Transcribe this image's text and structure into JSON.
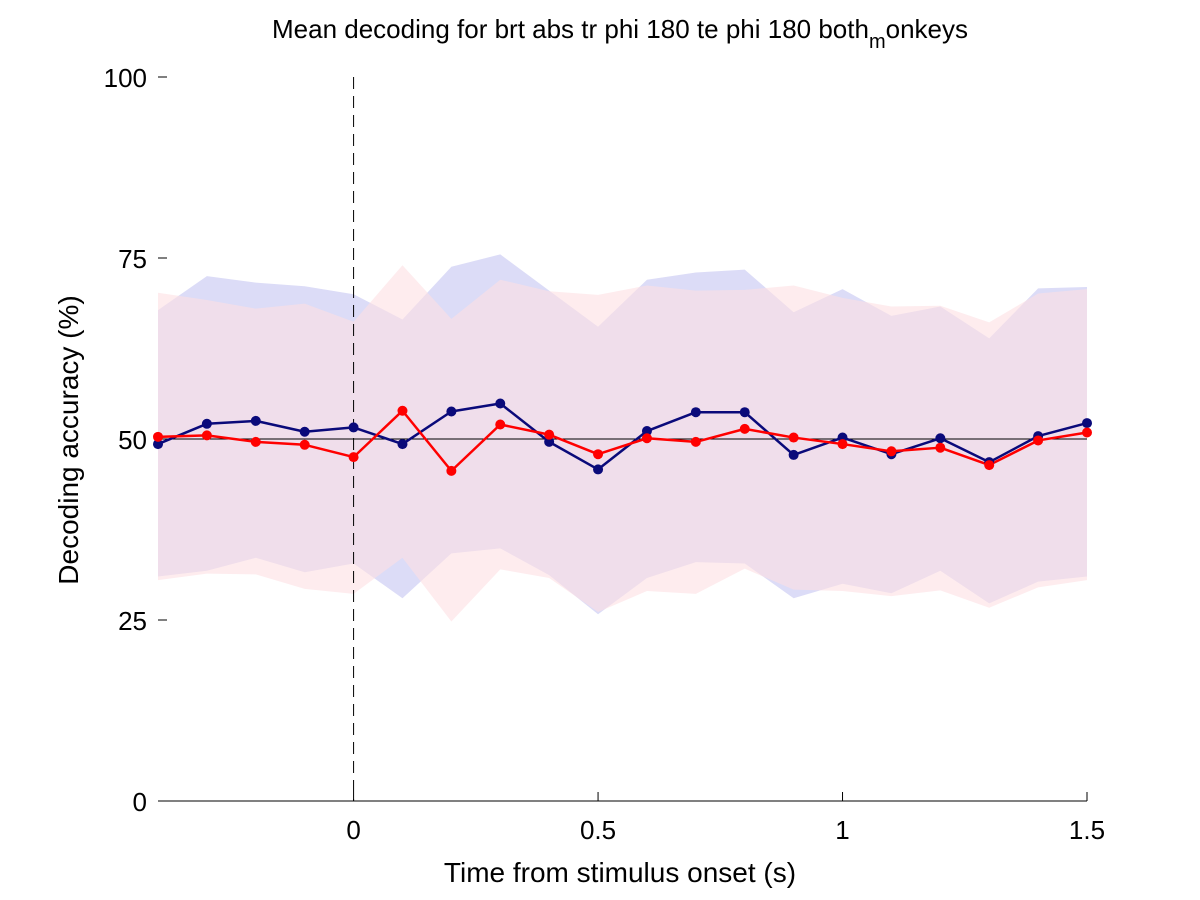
{
  "chart_data": {
    "type": "line",
    "title_main": "Mean decoding for brt abs tr phi 180 te phi 180  both",
    "title_sub": "m",
    "title_tail": "onkeys",
    "xlabel": "Time from stimulus onset (s)",
    "ylabel": "Decoding accuracy (%)",
    "xlim": [
      -0.4,
      1.5
    ],
    "ylim": [
      0,
      100
    ],
    "xticks": [
      0,
      0.5,
      1,
      1.5
    ],
    "xtick_labels": [
      "0",
      "0.5",
      "1",
      "1.5"
    ],
    "yticks": [
      0,
      25,
      50,
      75,
      100
    ],
    "ytick_labels": [
      "0",
      "25",
      "50",
      "75",
      "100"
    ],
    "chance_level": 50,
    "onset_time": 0,
    "grid": false,
    "legend": "none",
    "x": [
      -0.4,
      -0.3,
      -0.2,
      -0.1,
      0,
      0.1,
      0.2,
      0.3,
      0.4,
      0.5,
      0.6,
      0.7,
      0.8,
      0.9,
      1.0,
      1.1,
      1.2,
      1.3,
      1.4,
      1.5
    ],
    "series": [
      {
        "color": "#0a0a7a",
        "band_color": "#dcdcf7",
        "values": [
          49.3,
          52.1,
          52.5,
          51.0,
          51.6,
          49.3,
          53.8,
          54.9,
          49.6,
          45.8,
          51.1,
          53.7,
          53.7,
          47.8,
          50.2,
          47.9,
          50.1,
          46.8,
          50.4,
          52.2
        ],
        "upper": [
          67.8,
          72.5,
          71.6,
          71.1,
          70.0,
          66.5,
          73.8,
          75.5,
          70.5,
          65.5,
          72.0,
          73.0,
          73.4,
          67.5,
          70.7,
          67.0,
          68.3,
          63.9,
          70.8,
          71.0
        ],
        "lower": [
          31.0,
          31.8,
          33.6,
          31.6,
          32.8,
          28.0,
          34.2,
          34.9,
          31.2,
          25.8,
          30.8,
          33.0,
          32.8,
          28.0,
          30.0,
          28.7,
          31.8,
          27.3,
          30.3,
          31.0
        ]
      },
      {
        "color": "#ff0000",
        "band_color": "#fde0e3",
        "values": [
          50.3,
          50.5,
          49.6,
          49.2,
          47.5,
          53.9,
          45.6,
          52.0,
          50.6,
          47.9,
          50.1,
          49.6,
          51.4,
          50.2,
          49.3,
          48.3,
          48.8,
          46.4,
          49.8,
          50.9
        ],
        "upper": [
          70.2,
          69.2,
          68.0,
          68.7,
          66.2,
          74.0,
          66.6,
          72.0,
          70.4,
          69.9,
          71.2,
          70.5,
          70.6,
          71.2,
          69.5,
          68.3,
          68.4,
          66.1,
          70.1,
          70.7
        ],
        "lower": [
          30.5,
          31.4,
          31.3,
          29.3,
          28.6,
          33.6,
          24.8,
          32.0,
          30.8,
          26.1,
          29.0,
          28.6,
          32.1,
          29.2,
          29.0,
          28.3,
          29.1,
          26.7,
          29.5,
          30.5
        ]
      }
    ]
  }
}
